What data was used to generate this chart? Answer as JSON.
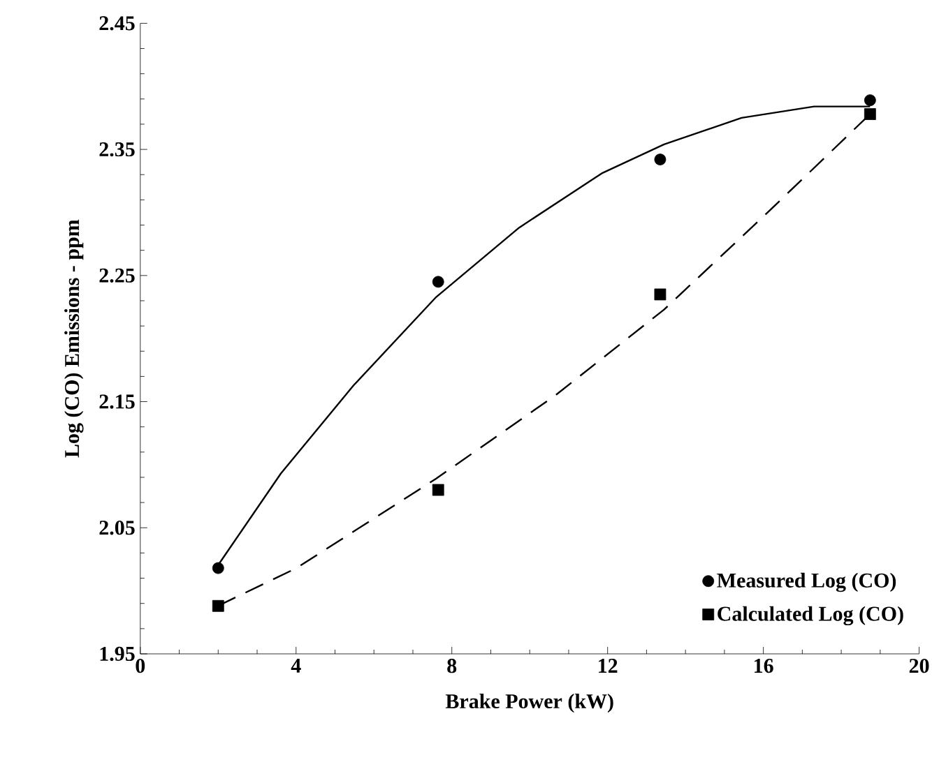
{
  "chart_data": {
    "type": "scatter",
    "xlabel": "Brake Power (kW)",
    "ylabel": "Log (CO) Emissions - ppm",
    "xlim": [
      0,
      20
    ],
    "xticks": [
      0,
      4,
      8,
      12,
      16,
      20
    ],
    "ylim": [
      1.95,
      2.45
    ],
    "yticks": [
      1.95,
      2.05,
      2.15,
      2.25,
      2.35,
      2.45
    ],
    "legend": "bottom right",
    "grid": false,
    "series": [
      {
        "name": "Measured Log (CO)",
        "color": "#000000",
        "marker": "circle",
        "x": [
          2,
          7.65,
          13.35,
          18.74
        ],
        "values": [
          2.018,
          2.245,
          2.342,
          2.389
        ]
      },
      {
        "name": "Calculated Log (CO)",
        "color": "#000000",
        "marker": "square",
        "x": [
          2,
          7.65,
          13.35,
          18.74
        ],
        "values": [
          1.988,
          2.08,
          2.235,
          2.378
        ]
      },
      {
        "type": "line",
        "color": "#000000",
        "line_style": "solid",
        "marker": "none",
        "x": [
          1.99,
          3.61,
          5.48,
          7.6,
          9.73,
          11.85,
          13.45,
          15.44,
          17.3,
          18.74
        ],
        "values": [
          2.02,
          2.093,
          2.163,
          2.233,
          2.288,
          2.331,
          2.354,
          2.375,
          2.384,
          2.384
        ]
      },
      {
        "type": "line",
        "color": "#000000",
        "line_style": "dashed",
        "marker": "none",
        "x": [
          1.99,
          4.01,
          7.6,
          10.66,
          13.45,
          16.11,
          18.74
        ],
        "values": [
          1.988,
          2.018,
          2.089,
          2.155,
          2.223,
          2.3,
          2.378
        ]
      }
    ]
  }
}
